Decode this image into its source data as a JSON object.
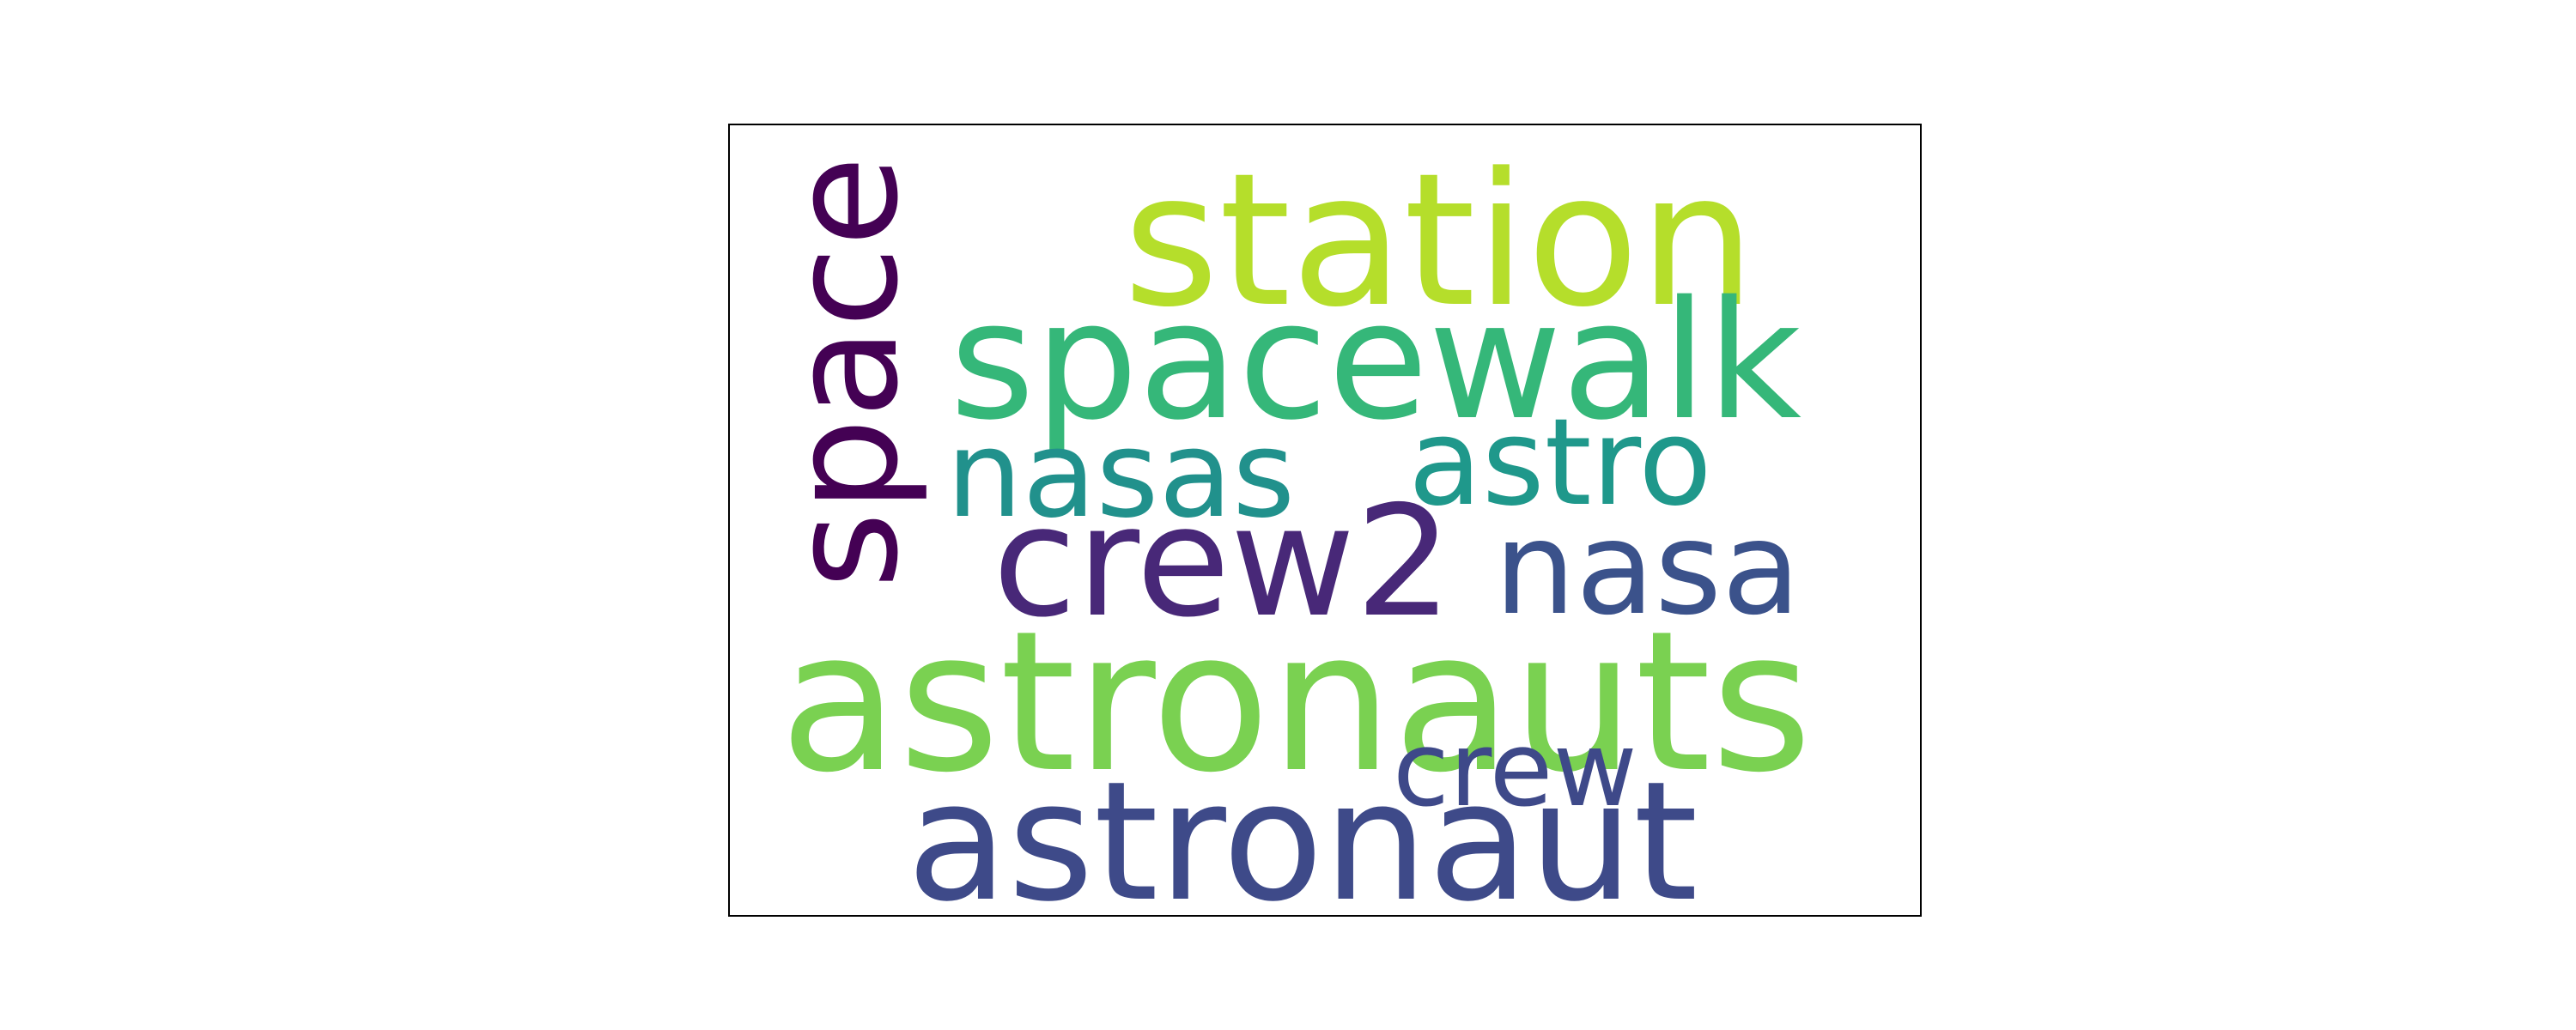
{
  "words": [
    {
      "text": "station",
      "color": "#b5de2b"
    },
    {
      "text": "spacewalk",
      "color": "#35b779"
    },
    {
      "text": "space",
      "color": "#440154"
    },
    {
      "text": "nasas",
      "color": "#21918c"
    },
    {
      "text": "astro",
      "color": "#1f988b"
    },
    {
      "text": "crew2",
      "color": "#482878"
    },
    {
      "text": "nasa",
      "color": "#3b528b"
    },
    {
      "text": "astronauts",
      "color": "#7ad151"
    },
    {
      "text": "crew",
      "color": "#3e4989"
    },
    {
      "text": "astronaut",
      "color": "#3e4a89"
    }
  ]
}
